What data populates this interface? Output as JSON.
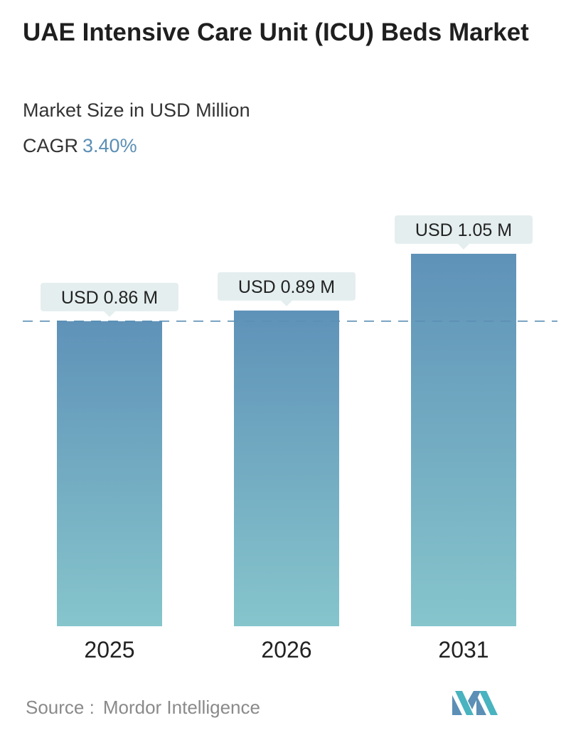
{
  "header": {
    "title": "UAE Intensive Care Unit (ICU) Beds Market",
    "subtitle": "Market Size in USD Million",
    "cagr_label": "CAGR",
    "cagr_value": "3.40%"
  },
  "chart_data": {
    "type": "bar",
    "categories": [
      "2025",
      "2026",
      "2031"
    ],
    "values": [
      0.86,
      0.89,
      1.05
    ],
    "data_labels": [
      "USD 0.86 M",
      "USD 0.89 M",
      "USD 1.05 M"
    ],
    "unit": "USD Million",
    "reference_line": 0.86,
    "grid": false,
    "colors": {
      "bar_top": "#5f92b8",
      "bar_bottom": "#86c5cc",
      "label_bg": "#e4eeef",
      "dashed_line": "#5b8fb5"
    }
  },
  "footer": {
    "source_label": "Source :",
    "source_value": "Mordor Intelligence",
    "logo_colors": [
      "#5b8fb5",
      "#49b3c0"
    ]
  }
}
